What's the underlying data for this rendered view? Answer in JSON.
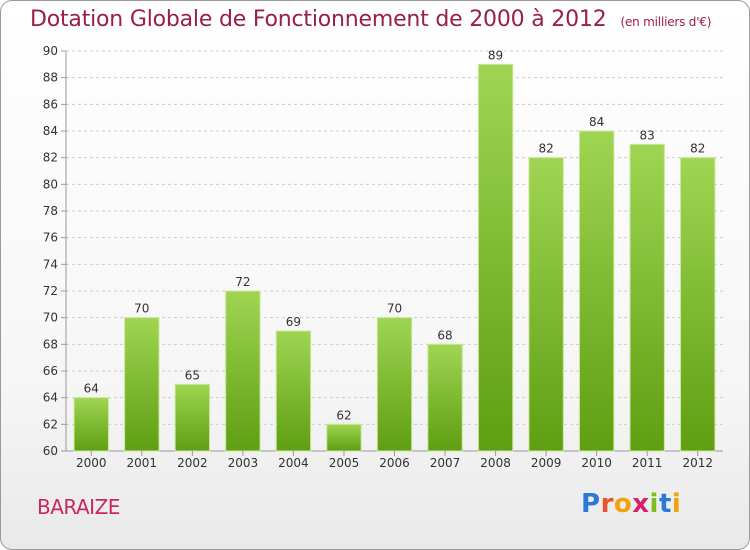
{
  "title": "Dotation Globale de Fonctionnement de 2000 à 2012",
  "unit_note": "(en milliers d'€)",
  "commune": "BARAIZE",
  "logo": {
    "text": "Proxiti",
    "colors": [
      "#2b7bd6",
      "#e8542b",
      "#f2a20d",
      "#d9206a",
      "#7bbf1f",
      "#2b7bd6",
      "#f2a20d"
    ]
  },
  "colors": {
    "title": "#9a1f44",
    "commune": "#c9295a",
    "bar_top": "#9fd552",
    "bar_bottom": "#5f9e12",
    "grid": "#cccccc"
  },
  "chart_data": {
    "type": "bar",
    "title": "Dotation Globale de Fonctionnement de 2000 à 2012",
    "subtitle": "(en milliers d'€)",
    "xlabel": "",
    "ylabel": "",
    "categories": [
      "2000",
      "2001",
      "2002",
      "2003",
      "2004",
      "2005",
      "2006",
      "2007",
      "2008",
      "2009",
      "2010",
      "2011",
      "2012"
    ],
    "values": [
      64,
      70,
      65,
      72,
      69,
      62,
      70,
      68,
      89,
      82,
      84,
      83,
      82
    ],
    "ylim": [
      60,
      90
    ],
    "yticks": [
      60,
      62,
      64,
      66,
      68,
      70,
      72,
      74,
      76,
      78,
      80,
      82,
      84,
      86,
      88,
      90
    ],
    "grid": true,
    "legend": "none"
  }
}
